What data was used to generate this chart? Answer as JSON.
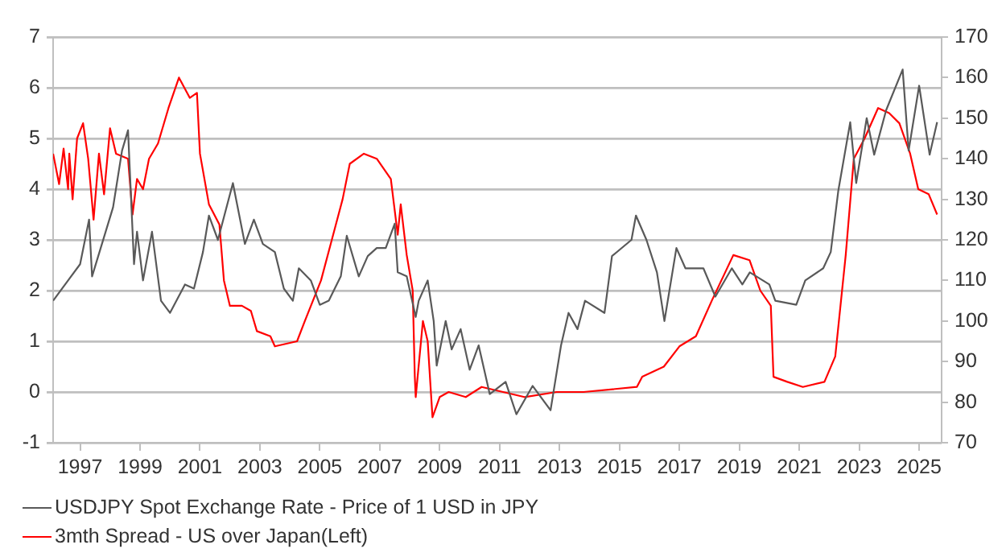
{
  "chart_data": {
    "type": "line",
    "xlim": [
      1996.1,
      2025.75
    ],
    "xticks": [
      1997,
      1999,
      2001,
      2003,
      2005,
      2007,
      2009,
      2011,
      2013,
      2015,
      2017,
      2019,
      2021,
      2023,
      2025
    ],
    "ylim": [
      -1,
      7
    ],
    "yticks": [
      -1,
      0,
      1,
      2,
      3,
      4,
      5,
      6,
      7
    ],
    "y2lim": [
      70,
      170
    ],
    "y2ticks": [
      70,
      80,
      90,
      100,
      110,
      120,
      130,
      140,
      150,
      160,
      170
    ],
    "grid": "y",
    "legend": "bottom left",
    "marker": "none",
    "line_style": "solid",
    "series": [
      {
        "name": "USDJPY Spot Exchange Rate - Price of 1 USD in JPY",
        "color": "#595959",
        "axis": "y2",
        "x": [
          1996.1,
          1996.6,
          1997.0,
          1997.3,
          1997.4,
          1998.1,
          1998.4,
          1998.6,
          1998.8,
          1998.9,
          1999.1,
          1999.4,
          1999.7,
          2000.0,
          2000.5,
          2000.8,
          2001.1,
          2001.3,
          2001.6,
          2002.1,
          2002.5,
          2002.8,
          2003.1,
          2003.5,
          2003.8,
          2004.1,
          2004.3,
          2004.7,
          2005.0,
          2005.3,
          2005.7,
          2005.9,
          2006.3,
          2006.6,
          2006.9,
          2007.2,
          2007.5,
          2007.6,
          2007.9,
          2008.2,
          2008.3,
          2008.6,
          2008.8,
          2008.9,
          2009.2,
          2009.4,
          2009.7,
          2010.0,
          2010.3,
          2010.67,
          2011.2,
          2011.56,
          2012.1,
          2012.7,
          2013.05,
          2013.3,
          2013.6,
          2013.85,
          2014.5,
          2014.75,
          2015.4,
          2015.55,
          2015.9,
          2016.25,
          2016.5,
          2016.9,
          2017.2,
          2017.8,
          2018.2,
          2018.75,
          2019.1,
          2019.35,
          2020.0,
          2020.2,
          2020.9,
          2021.2,
          2021.8,
          2022.05,
          2022.3,
          2022.7,
          2022.9,
          2023.25,
          2023.5,
          2023.9,
          2024.45,
          2024.65,
          2025.0,
          2025.35,
          2025.6
        ],
        "values": [
          105,
          110,
          114,
          125,
          111,
          128,
          142,
          147,
          114,
          122,
          110,
          122,
          105,
          102,
          109,
          108,
          117,
          126,
          120,
          134,
          119,
          125,
          119,
          117,
          108,
          105,
          113,
          110,
          104,
          105,
          111,
          121,
          111,
          116,
          118,
          118,
          124,
          112,
          111,
          101,
          105,
          110,
          100,
          89,
          100,
          93,
          98,
          88,
          94,
          82,
          85,
          77,
          84,
          78,
          94,
          102,
          98,
          105,
          102,
          116,
          120,
          126,
          120,
          112,
          100,
          118,
          113,
          113,
          106,
          113,
          109,
          112,
          109,
          105,
          104,
          110,
          113,
          117,
          132,
          149,
          134,
          150,
          141,
          152,
          162,
          142,
          158,
          141,
          149
        ]
      },
      {
        "name": "3mth Spread - US over Japan(Left)",
        "color": "#ff0000",
        "x": [
          1996.1,
          1996.3,
          1996.45,
          1996.6,
          1996.64,
          1996.75,
          1996.9,
          1997.1,
          1997.27,
          1997.45,
          1997.63,
          1997.8,
          1998.0,
          1998.2,
          1998.6,
          1998.75,
          1998.9,
          1999.1,
          1999.3,
          1999.6,
          1999.95,
          2000.3,
          2000.66,
          2000.9,
          2001.0,
          2001.3,
          2001.65,
          2001.8,
          2002.0,
          2002.4,
          2002.7,
          2002.9,
          2003.35,
          2003.5,
          2004.24,
          2004.5,
          2005.04,
          2005.4,
          2005.76,
          2006.0,
          2006.47,
          2006.9,
          2007.37,
          2007.6,
          2007.7,
          2007.9,
          2008.1,
          2008.17,
          2008.2,
          2008.44,
          2008.6,
          2008.76,
          2009.0,
          2009.3,
          2009.87,
          2010.4,
          2011.83,
          2012.9,
          2013.8,
          2015.58,
          2015.76,
          2016.48,
          2017.0,
          2017.55,
          2018.08,
          2018.8,
          2019.34,
          2019.7,
          2020.05,
          2020.14,
          2020.6,
          2021.12,
          2021.84,
          2022.2,
          2022.55,
          2022.82,
          2023.18,
          2023.63,
          2024.0,
          2024.34,
          2024.7,
          2024.97,
          2025.32,
          2025.6
        ],
        "values": [
          4.7,
          4.1,
          4.8,
          4.0,
          4.7,
          3.8,
          5.0,
          5.3,
          4.6,
          3.4,
          4.7,
          3.9,
          5.2,
          4.7,
          4.6,
          3.5,
          4.2,
          4.0,
          4.6,
          4.9,
          5.6,
          6.2,
          5.8,
          5.9,
          4.7,
          3.7,
          3.3,
          2.2,
          1.7,
          1.7,
          1.6,
          1.2,
          1.1,
          0.9,
          1.0,
          1.4,
          2.2,
          3.0,
          3.8,
          4.5,
          4.7,
          4.6,
          4.2,
          3.1,
          3.7,
          2.7,
          2.0,
          0.3,
          -0.1,
          1.4,
          1.0,
          -0.5,
          -0.1,
          0.0,
          -0.1,
          0.1,
          -0.1,
          0.0,
          0.0,
          0.1,
          0.3,
          0.5,
          0.9,
          1.1,
          1.8,
          2.7,
          2.6,
          2.0,
          1.7,
          0.3,
          0.2,
          0.1,
          0.2,
          0.7,
          2.7,
          4.6,
          5.0,
          5.6,
          5.5,
          5.3,
          4.7,
          4.0,
          3.9,
          3.5
        ]
      }
    ]
  }
}
